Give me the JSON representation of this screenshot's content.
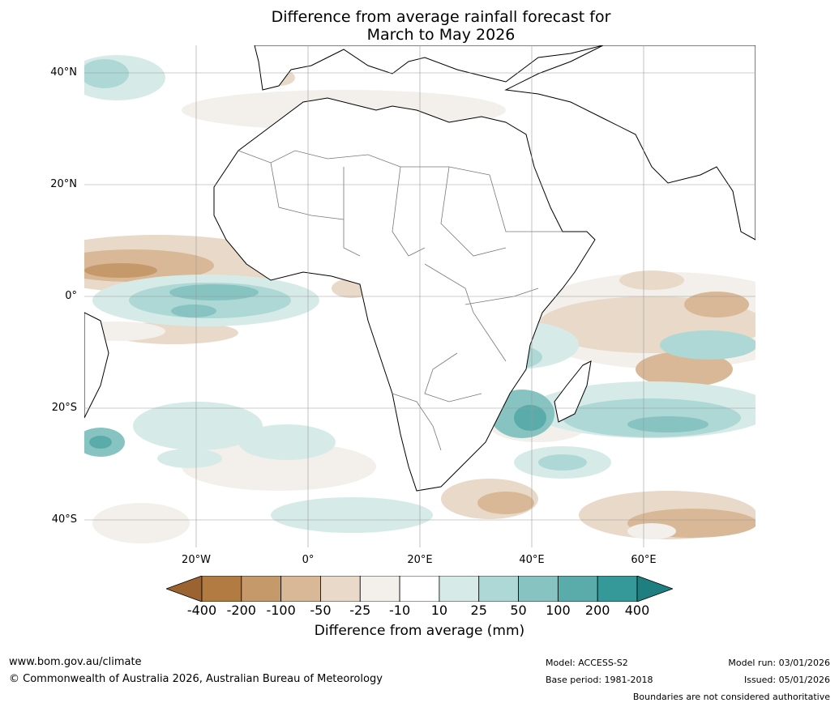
{
  "title": {
    "line1": "Difference from average rainfall forecast for",
    "line2": "March to May 2026"
  },
  "axes": {
    "lat_labels": [
      "40°N",
      "20°N",
      "0°",
      "20°S",
      "40°S"
    ],
    "lon_labels": [
      "20°W",
      "0°",
      "20°E",
      "40°E",
      "60°E"
    ]
  },
  "colorbar": {
    "ticks": [
      "-400",
      "-200",
      "-100",
      "-50",
      "-25",
      "-10",
      "10",
      "25",
      "50",
      "100",
      "200",
      "400"
    ],
    "colors": [
      "#9a6330",
      "#b27b41",
      "#c6996b",
      "#d8b896",
      "#e8d9c8",
      "#f3efea",
      "#ffffff",
      "#d6ebe8",
      "#add8d5",
      "#86c3c1",
      "#5aacab",
      "#35999a",
      "#1f7e80"
    ],
    "label": "Difference from average (mm)"
  },
  "footer": {
    "website": "www.bom.gov.au/climate",
    "copyright": "© Commonwealth of Australia 2026, Australian Bureau of Meteorology",
    "model": "Model: ACCESS-S2",
    "base_period": "Base period: 1981-2018",
    "model_run": "Model run: 03/01/2026",
    "issued": "Issued: 05/01/2026",
    "disclaimer": "Boundaries are not considered authoritative"
  }
}
